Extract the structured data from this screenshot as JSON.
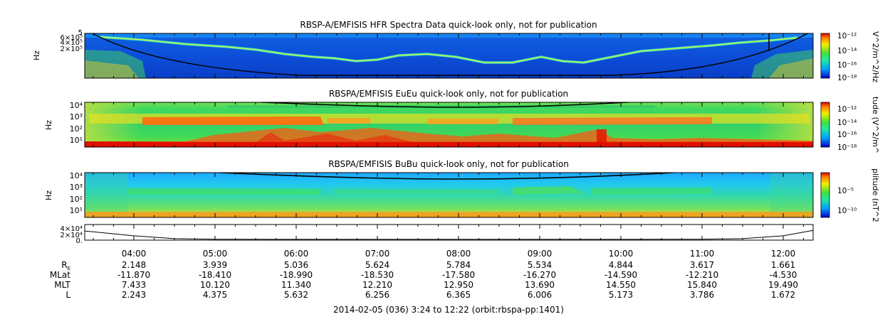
{
  "chart_data": [
    {
      "type": "heatmap",
      "title": "RBSP-A/EMFISIS  HFR Spectra Data quick-look only, not for publication",
      "ylabel": "Hz",
      "yticks": [
        "6×10⁵",
        "4×10⁵",
        "2×10⁵"
      ],
      "ytick_top": "5",
      "colorbar_label": "V^2/m^2/Hz",
      "colorbar_ticks": [
        "10⁻¹²",
        "10⁻¹⁴",
        "10⁻¹⁶",
        "10⁻¹⁸"
      ]
    },
    {
      "type": "heatmap",
      "title": "RBSPA/EMFISIS  EuEu quick-look only, not for publication",
      "ylabel": "Hz",
      "yticks": [
        "10⁴",
        "10³",
        "10²",
        "10¹"
      ],
      "colorbar_label": "tude (V^2/m^",
      "colorbar_ticks": [
        "10⁻¹²",
        "10⁻¹⁴",
        "10⁻¹⁶",
        "10⁻¹⁸"
      ]
    },
    {
      "type": "heatmap",
      "title": "RBSPA/EMFISIS  BuBu quick-look only, not for publication",
      "ylabel": "Hz",
      "yticks": [
        "10⁴",
        "10³",
        "10²",
        "10¹"
      ],
      "colorbar_label": "plitude (nT^2",
      "colorbar_ticks": [
        "10⁻⁵",
        "10⁻¹⁰"
      ]
    },
    {
      "type": "line",
      "yticks": [
        "4×10⁴",
        "2×10⁴",
        "0."
      ],
      "x": [
        3.4,
        4.0,
        4.5,
        5.0,
        6.0,
        7.0,
        8.0,
        9.0,
        10.0,
        11.0,
        11.5,
        12.0,
        12.37
      ],
      "y": [
        28000,
        12000,
        2500,
        400,
        200,
        200,
        200,
        200,
        200,
        500,
        2500,
        12000,
        30000
      ]
    }
  ],
  "time_axis": {
    "ticks": [
      "04:00",
      "05:00",
      "06:00",
      "07:00",
      "08:00",
      "09:00",
      "10:00",
      "11:00",
      "12:00"
    ],
    "rows": [
      {
        "label": "R",
        "label_sub": "E",
        "values": [
          "2.148",
          "3.939",
          "5.036",
          "5.624",
          "5.784",
          "5.534",
          "4.844",
          "3.617",
          "1.661"
        ]
      },
      {
        "label": "MLat",
        "values": [
          "-11.870",
          "-18.410",
          "-18.990",
          "-18.530",
          "-17.580",
          "-16.270",
          "-14.590",
          "-12.210",
          "-4.530"
        ]
      },
      {
        "label": "MLT",
        "values": [
          "7.433",
          "10.120",
          "11.340",
          "12.210",
          "12.950",
          "13.690",
          "14.550",
          "15.840",
          "19.490"
        ]
      },
      {
        "label": "L",
        "values": [
          "2.243",
          "4.375",
          "5.632",
          "6.256",
          "6.365",
          "6.006",
          "5.173",
          "3.786",
          "1.672"
        ]
      }
    ],
    "footer": "2014-02-05 (036) 3:24 to 12:22 (orbit:rbspa-pp:1401)"
  }
}
